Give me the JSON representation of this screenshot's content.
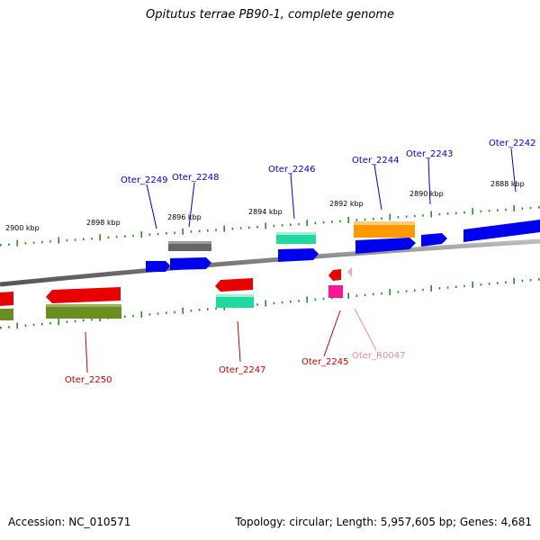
{
  "title": "Opitutus terrae PB90-1, complete genome",
  "footer": {
    "accession": "Accession: NC_010571",
    "summary": "Topology: circular; Length: 5,957,605 bp; Genes: 4,681"
  },
  "colors": {
    "backbone": "#808080",
    "tick": "#2a8a2a",
    "forward_label": "#0000cc",
    "reverse_label": "#cc0000",
    "rna_label": "#ee88aa"
  },
  "kbp_labels": [
    "2900 kbp",
    "2898 kbp",
    "2896 kbp",
    "2894 kbp",
    "2892 kbp",
    "2890 kbp",
    "2888 kbp"
  ],
  "gene_labels_forward": [
    "Oter_2249",
    "Oter_2248",
    "Oter_2246",
    "Oter_2244",
    "Oter_2243",
    "Oter_2242"
  ],
  "gene_labels_reverse": [
    "Oter_2250",
    "Oter_2247",
    "Oter_2245",
    "Oter_R0047"
  ]
}
